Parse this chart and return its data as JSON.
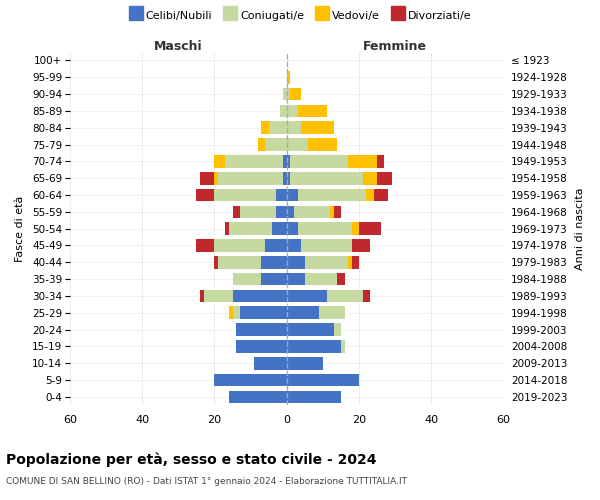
{
  "age_groups": [
    "0-4",
    "5-9",
    "10-14",
    "15-19",
    "20-24",
    "25-29",
    "30-34",
    "35-39",
    "40-44",
    "45-49",
    "50-54",
    "55-59",
    "60-64",
    "65-69",
    "70-74",
    "75-79",
    "80-84",
    "85-89",
    "90-94",
    "95-99",
    "100+"
  ],
  "birth_years": [
    "2019-2023",
    "2014-2018",
    "2009-2013",
    "2004-2008",
    "1999-2003",
    "1994-1998",
    "1989-1993",
    "1984-1988",
    "1979-1983",
    "1974-1978",
    "1969-1973",
    "1964-1968",
    "1959-1963",
    "1954-1958",
    "1949-1953",
    "1944-1948",
    "1939-1943",
    "1934-1938",
    "1929-1933",
    "1924-1928",
    "≤ 1923"
  ],
  "maschi": {
    "celibi": [
      16,
      20,
      9,
      14,
      14,
      13,
      15,
      7,
      7,
      6,
      4,
      3,
      3,
      1,
      1,
      0,
      0,
      0,
      0,
      0,
      0
    ],
    "coniugati": [
      0,
      0,
      0,
      0,
      0,
      2,
      8,
      8,
      12,
      14,
      12,
      10,
      17,
      18,
      16,
      6,
      5,
      2,
      1,
      0,
      0
    ],
    "vedovi": [
      0,
      0,
      0,
      0,
      0,
      1,
      0,
      0,
      0,
      0,
      0,
      0,
      0,
      1,
      3,
      2,
      2,
      0,
      0,
      0,
      0
    ],
    "divorziati": [
      0,
      0,
      0,
      0,
      0,
      0,
      1,
      0,
      1,
      5,
      1,
      2,
      5,
      4,
      0,
      0,
      0,
      0,
      0,
      0,
      0
    ]
  },
  "femmine": {
    "nubili": [
      15,
      20,
      10,
      15,
      13,
      9,
      11,
      5,
      5,
      4,
      3,
      2,
      3,
      1,
      1,
      0,
      0,
      0,
      0,
      0,
      0
    ],
    "coniugate": [
      0,
      0,
      0,
      1,
      2,
      7,
      10,
      9,
      12,
      14,
      15,
      10,
      19,
      20,
      16,
      6,
      4,
      3,
      1,
      0,
      0
    ],
    "vedove": [
      0,
      0,
      0,
      0,
      0,
      0,
      0,
      0,
      1,
      0,
      2,
      1,
      2,
      4,
      8,
      8,
      9,
      8,
      3,
      1,
      0
    ],
    "divorziate": [
      0,
      0,
      0,
      0,
      0,
      0,
      2,
      2,
      2,
      5,
      6,
      2,
      4,
      4,
      2,
      0,
      0,
      0,
      0,
      0,
      0
    ]
  },
  "colors": {
    "celibi": "#4472c4",
    "coniugati": "#c5d9a0",
    "vedovi": "#ffc000",
    "divorziati": "#c0282d"
  },
  "xlim": 60,
  "title": "Popolazione per età, sesso e stato civile - 2024",
  "subtitle": "COMUNE DI SAN BELLINO (RO) - Dati ISTAT 1° gennaio 2024 - Elaborazione TUTTITALIA.IT",
  "ylabel_left": "Fasce di età",
  "ylabel_right": "Anni di nascita",
  "xlabel_maschi": "Maschi",
  "xlabel_femmine": "Femmine",
  "legend_labels": [
    "Celibi/Nubili",
    "Coniugati/e",
    "Vedovi/e",
    "Divorziati/e"
  ],
  "bg_color": "#ffffff",
  "grid_color": "#cccccc"
}
